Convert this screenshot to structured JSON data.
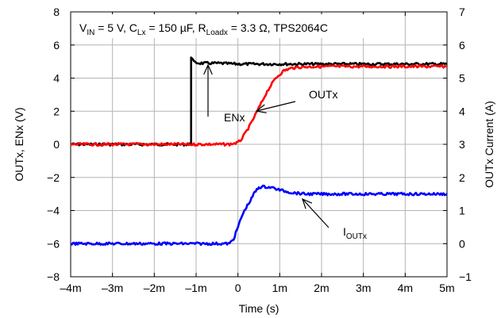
{
  "chart_data": {
    "type": "line",
    "xlabel": "Time (s)",
    "ylabel_left": "OUTx, ENx (V)",
    "ylabel_right": "OUTx Current (A)",
    "xlim": [
      -0.004,
      0.005
    ],
    "ylim_left": [
      -8,
      8
    ],
    "ylim_right": [
      -1,
      7
    ],
    "grid": true,
    "x_ticks": [
      -0.004,
      -0.003,
      -0.002,
      -0.001,
      0,
      0.001,
      0.002,
      0.003,
      0.004,
      0.005
    ],
    "x_tick_labels": [
      "–4m",
      "–3m",
      "–2m",
      "–1m",
      "0",
      "1m",
      "2m",
      "3m",
      "4m",
      "5m"
    ],
    "y_left_ticks": [
      -8,
      -6,
      -4,
      -2,
      0,
      2,
      4,
      6,
      8
    ],
    "y_left_tick_labels": [
      "−8",
      "−6",
      "−4",
      "−2",
      "0",
      "2",
      "4",
      "6",
      "8"
    ],
    "y_right_ticks": [
      -1,
      0,
      1,
      2,
      3,
      4,
      5,
      6,
      7
    ],
    "y_right_tick_labels": [
      "−1",
      "0",
      "1",
      "2",
      "3",
      "4",
      "5",
      "6",
      "7"
    ],
    "conditions": {
      "vin": "V",
      "vin_sub": "IN",
      "vin_val": " = 5 V, C",
      "c_sub": "Lx",
      "c_val": " = 150 µF, R",
      "r_sub": "Loadx",
      "r_val": " = 3.3 Ω, TPS2064C"
    },
    "annotations": {
      "outx": "OUTx",
      "enx": "ENx",
      "iout_main": "I",
      "iout_sub": "OUTx"
    },
    "series": [
      {
        "name": "ENx",
        "axis": "left",
        "color": "#000000",
        "x": [
          -0.004,
          -0.00112,
          -0.00112,
          -0.00105,
          -0.0009,
          -0.0005,
          0.0,
          0.001,
          0.002,
          0.003,
          0.004,
          0.005
        ],
        "y": [
          0.0,
          0.0,
          5.3,
          4.95,
          4.9,
          4.9,
          4.85,
          4.85,
          4.85,
          4.85,
          4.85,
          4.85
        ]
      },
      {
        "name": "OUTx",
        "axis": "left",
        "color": "#ff0000",
        "x": [
          -0.004,
          -0.001,
          -0.0002,
          0.0,
          0.0001,
          0.0003,
          0.0005,
          0.0007,
          0.0009,
          0.0011,
          0.0013,
          0.0016,
          0.002,
          0.003,
          0.004,
          0.005
        ],
        "y": [
          0.0,
          0.0,
          0.0,
          0.1,
          0.35,
          1.2,
          2.2,
          3.2,
          4.0,
          4.45,
          4.62,
          4.68,
          4.7,
          4.7,
          4.7,
          4.7
        ]
      },
      {
        "name": "IOUTx",
        "axis": "right",
        "color": "#0000ff",
        "x": [
          -0.004,
          -0.001,
          -0.0002,
          -0.0001,
          0.0,
          0.0001,
          0.0002,
          0.0003,
          0.0004,
          0.0005,
          0.0006,
          0.0008,
          0.001,
          0.0013,
          0.0016,
          0.002,
          0.003,
          0.004,
          0.005
        ],
        "y": [
          0.0,
          0.0,
          0.0,
          0.15,
          0.5,
          0.85,
          1.1,
          1.3,
          1.55,
          1.7,
          1.72,
          1.7,
          1.62,
          1.54,
          1.5,
          1.5,
          1.5,
          1.5,
          1.5
        ]
      }
    ]
  }
}
